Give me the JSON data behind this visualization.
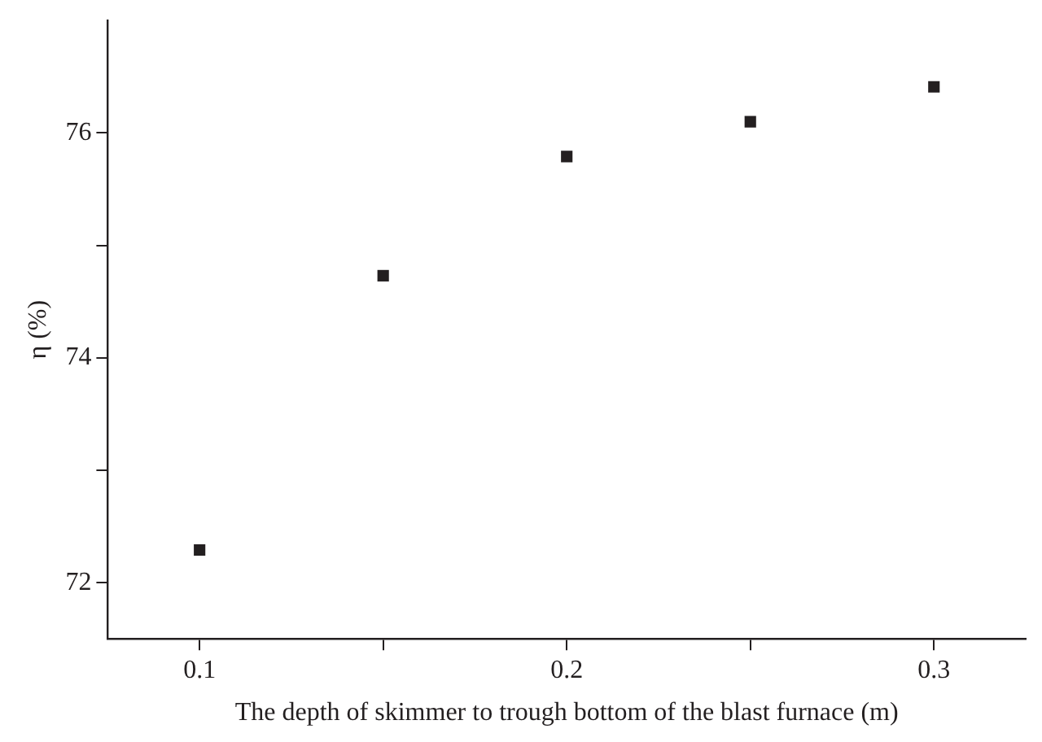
{
  "chart_data": {
    "type": "scatter",
    "xlabel": "The depth of skimmer to trough bottom of the blast furnace (m)",
    "ylabel": "η (%)",
    "x": [
      0.1,
      0.15,
      0.2,
      0.25,
      0.3
    ],
    "series": [
      {
        "color": "#231f20",
        "values": [
          72.29,
          74.73,
          75.79,
          76.1,
          76.41
        ]
      }
    ],
    "xlim": [
      0.075,
      0.325
    ],
    "xticks": [
      0.1,
      {
        "value": 0.15,
        "label": null
      },
      0.2,
      {
        "value": 0.25,
        "label": null
      },
      0.3
    ],
    "ylim": [
      71.5,
      77
    ],
    "yticks": [
      72,
      {
        "value": 73,
        "label": null
      },
      74,
      {
        "value": 75,
        "label": null
      },
      76
    ],
    "marker": "square",
    "grid": false,
    "legend": false
  }
}
